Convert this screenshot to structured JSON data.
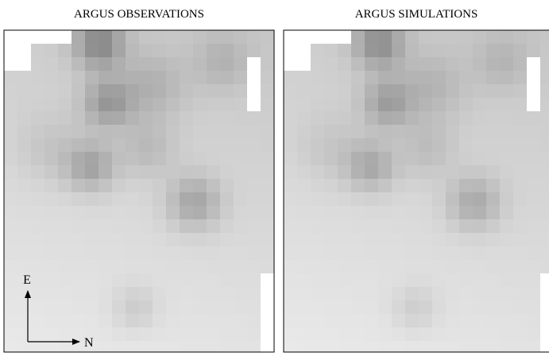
{
  "panels": [
    {
      "title": "ARGUS OBSERVATIONS"
    },
    {
      "title": "ARGUS SIMULATIONS"
    }
  ],
  "compass": {
    "up": "E",
    "right": "N"
  }
}
